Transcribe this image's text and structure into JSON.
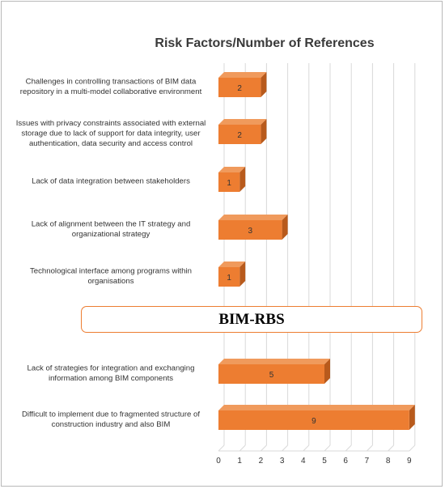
{
  "chart_data": {
    "type": "bar",
    "orientation": "horizontal",
    "style": "3d",
    "title": "Risk Factors/Number of References",
    "section_label": "BIM-RBS",
    "colors": {
      "bar_front": "#ed7d31",
      "bar_top": "#f09a5c",
      "bar_side": "#b85a1c",
      "section_border": "#ed7d31",
      "grid": "#d9d9d9"
    },
    "grid": true,
    "xlim": [
      0,
      9
    ],
    "x_ticks": [
      "0",
      "1",
      "2",
      "3",
      "4",
      "5",
      "6",
      "7",
      "8",
      "9"
    ],
    "categories": [
      [
        "Challenges in controlling transactions of BIM data",
        "repository in a multi-model collaborative environment"
      ],
      [
        "Issues with privacy constraints associated with external",
        "storage due to lack of support for data integrity, user",
        "authentication, data security and access control"
      ],
      [
        "Lack of data integration between stakeholders"
      ],
      [
        "Lack of alignment between the IT strategy and",
        "organizational strategy"
      ],
      [
        "Technological interface among programs within",
        "organisations"
      ],
      [
        "Lack of strategies for integration and exchanging",
        "information among BIM components"
      ],
      [
        "Difficult to implement due to fragmented structure of",
        "construction industry and also BIM"
      ]
    ],
    "values": [
      2,
      2,
      1,
      3,
      1,
      5,
      9
    ],
    "data_labels": [
      "2",
      "2",
      "1",
      "3",
      "1",
      "5",
      "9"
    ]
  }
}
